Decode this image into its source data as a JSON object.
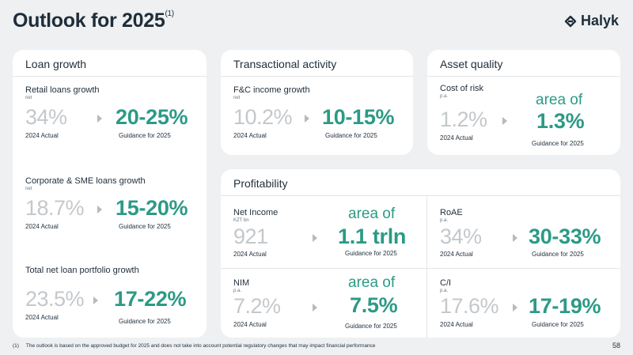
{
  "header": {
    "title": "Outlook for 2025",
    "title_note": "(1)",
    "logo_text": "Halyk"
  },
  "loan_growth": {
    "title": "Loan growth",
    "retail": {
      "label": "Retail loans growth",
      "unit": "net",
      "actual": "34%",
      "actual_caption": "2024 Actual",
      "guidance": "20-25%",
      "guidance_caption": "Guidance for 2025"
    },
    "corporate": {
      "label": "Corporate & SME loans growth",
      "unit": "net",
      "actual": "18.7%",
      "actual_caption": "2024 Actual",
      "guidance": "15-20%",
      "guidance_caption": "Guidance for 2025"
    },
    "total": {
      "label": "Total net loan portfolio growth",
      "actual": "23.5%",
      "actual_caption": "2024 Actual",
      "guidance": "17-22%",
      "guidance_caption": "Guidance for 2025"
    }
  },
  "transactional": {
    "title": "Transactional activity",
    "fc": {
      "label": "F&C income growth",
      "unit": "net",
      "actual": "10.2%",
      "actual_caption": "2024 Actual",
      "guidance": "10-15%",
      "guidance_caption": "Guidance for 2025"
    }
  },
  "asset_quality": {
    "title": "Asset quality",
    "cor": {
      "label": "Cost of risk",
      "unit": "p.a.",
      "actual": "1.2%",
      "actual_caption": "2024 Actual",
      "guidance_prefix": "area of",
      "guidance": "1.3%",
      "guidance_caption": "Guidance for 2025"
    }
  },
  "profitability": {
    "title": "Profitability",
    "net_income": {
      "label": "Net Income",
      "unit": "KZT bn",
      "actual": "921",
      "actual_caption": "2024 Actual",
      "guidance_prefix": "area of",
      "guidance": "1.1 trln",
      "guidance_caption": "Guidance for 2025"
    },
    "roae": {
      "label": "RoAE",
      "unit": "p.a.",
      "actual": "34%",
      "actual_caption": "2024 Actual",
      "guidance": "30-33%",
      "guidance_caption": "Guidance for 2025"
    },
    "nim": {
      "label": "NIM",
      "unit": "p.a.",
      "actual": "7.2%",
      "actual_caption": "2024 Actual",
      "guidance_prefix": "area of",
      "guidance": "7.5%",
      "guidance_caption": "Guidance for 2025"
    },
    "ci": {
      "label": "C/I",
      "unit": "p.a.",
      "actual": "17.6%",
      "actual_caption": "2024 Actual",
      "guidance": "17-19%",
      "guidance_caption": "Guidance for 2025"
    }
  },
  "footer": {
    "footnote": "(1)     The outlook is based on the approved budget for 2025 and does not take into account potential regulatory changes that may impact financial performance",
    "page_number": "58"
  },
  "colors": {
    "accent": "#2c9a86",
    "actual_gray": "#c4c8cb",
    "background": "#eef0f1"
  }
}
